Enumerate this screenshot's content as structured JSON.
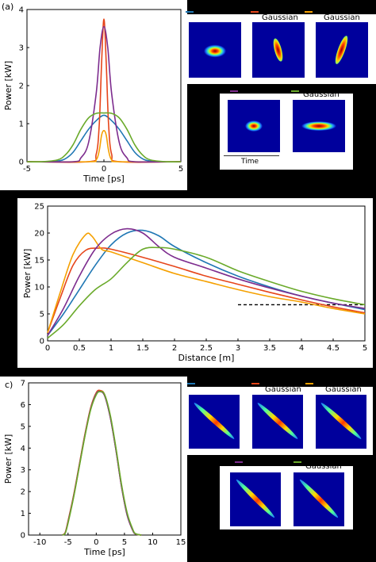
{
  "panel_labels": {
    "a": "(a)",
    "c": "c)"
  },
  "legend_text": {
    "gaussian": "Gaussian",
    "time_cut": "Time"
  },
  "colors": {
    "blue": "#1f77b4",
    "red": "#e6451a",
    "orange": "#f5a000",
    "purple": "#7d2c8e",
    "green": "#6aaa2a"
  },
  "chart_data": [
    {
      "id": "a",
      "type": "line",
      "xlabel": "Time [ps]",
      "ylabel": "Power [kW]",
      "xlim": [
        -5,
        5
      ],
      "ylim": [
        0,
        4
      ],
      "xticks": [
        -5,
        0,
        5
      ],
      "yticks": [
        0,
        1,
        2,
        3,
        4
      ],
      "series": [
        {
          "color": "#1f77b4",
          "x": [
            -5,
            -4,
            -3,
            -2.5,
            -2,
            -1.5,
            -1,
            -0.5,
            0,
            0.5,
            1,
            1.5,
            2,
            2.5,
            3,
            4,
            5
          ],
          "y": [
            0,
            0,
            0.02,
            0.08,
            0.25,
            0.55,
            0.85,
            1.08,
            1.22,
            1.08,
            0.85,
            0.55,
            0.25,
            0.08,
            0.02,
            0,
            0
          ]
        },
        {
          "color": "#e6451a",
          "x": [
            -5,
            -1,
            -0.5,
            -0.3,
            -0.15,
            0,
            0.15,
            0.3,
            0.5,
            1,
            5
          ],
          "y": [
            0,
            0,
            0.2,
            1.0,
            2.6,
            3.75,
            2.6,
            1.0,
            0.2,
            0,
            0
          ]
        },
        {
          "color": "#f5a000",
          "x": [
            -5,
            -1,
            -0.5,
            -0.3,
            -0.15,
            0,
            0.15,
            0.3,
            0.5,
            1,
            5
          ],
          "y": [
            0,
            0,
            0.05,
            0.3,
            0.7,
            0.82,
            0.7,
            0.3,
            0.05,
            0,
            0
          ]
        },
        {
          "color": "#7d2c8e",
          "x": [
            -5,
            -2,
            -1.5,
            -1,
            -0.5,
            -0.25,
            0,
            0.25,
            0.5,
            1,
            1.5,
            2,
            5
          ],
          "y": [
            0,
            0,
            0.1,
            0.5,
            1.8,
            3.0,
            3.55,
            3.0,
            1.8,
            0.5,
            0.1,
            0,
            0
          ]
        },
        {
          "color": "#6aaa2a",
          "x": [
            -5,
            -4,
            -3,
            -2.5,
            -2,
            -1.5,
            -1,
            -0.5,
            0,
            0.5,
            1,
            1.5,
            2,
            2.5,
            3,
            4,
            5
          ],
          "y": [
            0,
            0,
            0.05,
            0.18,
            0.45,
            0.85,
            1.15,
            1.27,
            1.28,
            1.27,
            1.15,
            0.85,
            0.45,
            0.18,
            0.05,
            0,
            0
          ]
        }
      ]
    },
    {
      "id": "b",
      "type": "line",
      "xlabel": "Distance [m]",
      "ylabel": "Power [kW]",
      "xlim": [
        0,
        5
      ],
      "ylim": [
        0,
        25
      ],
      "xticks": [
        0,
        0.5,
        1,
        1.5,
        2,
        2.5,
        3,
        3.5,
        4,
        4.5,
        5
      ],
      "yticks": [
        0,
        5,
        10,
        15,
        20,
        25
      ],
      "series": [
        {
          "color": "#1f77b4",
          "x": [
            0,
            0.25,
            0.5,
            0.75,
            1,
            1.25,
            1.5,
            1.75,
            2,
            2.5,
            3,
            3.5,
            4,
            4.5,
            5
          ],
          "y": [
            1,
            5,
            9.5,
            14,
            17.8,
            20,
            20.5,
            19.5,
            17.5,
            14.5,
            12,
            10,
            8.3,
            7,
            5.8
          ]
        },
        {
          "color": "#e6451a",
          "x": [
            0,
            0.2,
            0.4,
            0.6,
            0.8,
            1,
            1.5,
            2,
            2.5,
            3,
            3.5,
            4,
            4.5,
            5
          ],
          "y": [
            1.5,
            8,
            14,
            16.8,
            17.2,
            17,
            15.5,
            13.8,
            12,
            10.5,
            9,
            7.6,
            6.3,
            5.2
          ]
        },
        {
          "color": "#f5a000",
          "x": [
            0,
            0.2,
            0.4,
            0.6,
            0.7,
            0.85,
            1,
            1.5,
            2,
            2.5,
            3,
            3.5,
            4,
            4.5,
            5
          ],
          "y": [
            1.5,
            9,
            16,
            19.7,
            19.4,
            17,
            16.5,
            14.5,
            12.5,
            11,
            9.5,
            8.2,
            7.2,
            6,
            5
          ]
        },
        {
          "color": "#7d2c8e",
          "x": [
            0,
            0.25,
            0.5,
            0.75,
            1,
            1.25,
            1.5,
            1.75,
            2,
            2.5,
            3,
            3.5,
            4,
            4.5,
            5
          ],
          "y": [
            1,
            6,
            12,
            17,
            19.8,
            20.8,
            20,
            17.5,
            15.5,
            13.5,
            11.5,
            9.8,
            8.3,
            7,
            6
          ]
        },
        {
          "color": "#6aaa2a",
          "x": [
            0,
            0.25,
            0.5,
            0.75,
            1,
            1.25,
            1.5,
            1.75,
            2,
            2.5,
            3,
            3.5,
            4,
            4.5,
            5
          ],
          "y": [
            0.5,
            3,
            6.5,
            9.5,
            11.5,
            14.5,
            17,
            17.3,
            17,
            15.5,
            13,
            11,
            9.2,
            7.8,
            6.7
          ]
        }
      ],
      "reference_line": {
        "x": [
          3,
          5
        ],
        "y": 6.7,
        "style": "dashed"
      }
    },
    {
      "id": "c",
      "type": "line",
      "xlabel": "Time [ps]",
      "ylabel": "Power [kW]",
      "xlim": [
        -12,
        15
      ],
      "ylim": [
        0,
        7
      ],
      "xticks": [
        -10,
        -5,
        0,
        5,
        10,
        15
      ],
      "yticks": [
        0,
        1,
        2,
        3,
        4,
        5,
        6,
        7
      ],
      "series": [
        {
          "color": "#1f77b4",
          "x": [
            -6,
            -5.5,
            -5,
            -4,
            -3,
            -2,
            -1,
            0,
            0.7,
            1.5,
            2.5,
            3.5,
            4.5,
            5.5,
            6.5,
            7,
            8
          ],
          "y": [
            0,
            0.1,
            0.6,
            1.8,
            3.2,
            4.6,
            5.8,
            6.5,
            6.6,
            6.4,
            5.4,
            3.9,
            2.2,
            0.9,
            0.2,
            0.05,
            0
          ]
        },
        {
          "color": "#e6451a",
          "x": [
            -6,
            -5.5,
            -5,
            -4,
            -3,
            -2,
            -1,
            0,
            0.7,
            1.5,
            2.5,
            3.5,
            4.5,
            5.5,
            6.5,
            7,
            8
          ],
          "y": [
            0,
            0.12,
            0.65,
            1.85,
            3.25,
            4.65,
            5.85,
            6.55,
            6.65,
            6.45,
            5.45,
            3.95,
            2.25,
            0.95,
            0.22,
            0.05,
            0
          ]
        },
        {
          "color": "#f5a000",
          "x": [
            -6,
            -5.5,
            -5,
            -4,
            -3,
            -2,
            -1,
            0,
            0.7,
            1.5,
            2.5,
            3.5,
            4.5,
            5.5,
            6.5,
            7,
            8
          ],
          "y": [
            0,
            0.1,
            0.6,
            1.8,
            3.2,
            4.6,
            5.8,
            6.5,
            6.6,
            6.4,
            5.4,
            3.9,
            2.2,
            0.9,
            0.2,
            0.05,
            0
          ]
        },
        {
          "color": "#7d2c8e",
          "x": [
            -6,
            -5.5,
            -5,
            -4,
            -3,
            -2,
            -1,
            0,
            0.7,
            1.5,
            2.5,
            3.5,
            4.5,
            5.5,
            6.5,
            7,
            8
          ],
          "y": [
            0,
            0.1,
            0.6,
            1.8,
            3.2,
            4.6,
            5.8,
            6.5,
            6.6,
            6.4,
            5.4,
            3.9,
            2.2,
            0.9,
            0.2,
            0.05,
            0
          ]
        },
        {
          "color": "#6aaa2a",
          "x": [
            -6,
            -5.5,
            -5,
            -4,
            -3,
            -2,
            -1,
            0,
            0.7,
            1.5,
            2.5,
            3.5,
            4.5,
            5.5,
            6.5,
            7,
            8
          ],
          "y": [
            0,
            0.08,
            0.55,
            1.75,
            3.15,
            4.55,
            5.75,
            6.45,
            6.6,
            6.45,
            5.5,
            4.0,
            2.3,
            1.0,
            0.25,
            0.06,
            0
          ]
        }
      ]
    }
  ]
}
